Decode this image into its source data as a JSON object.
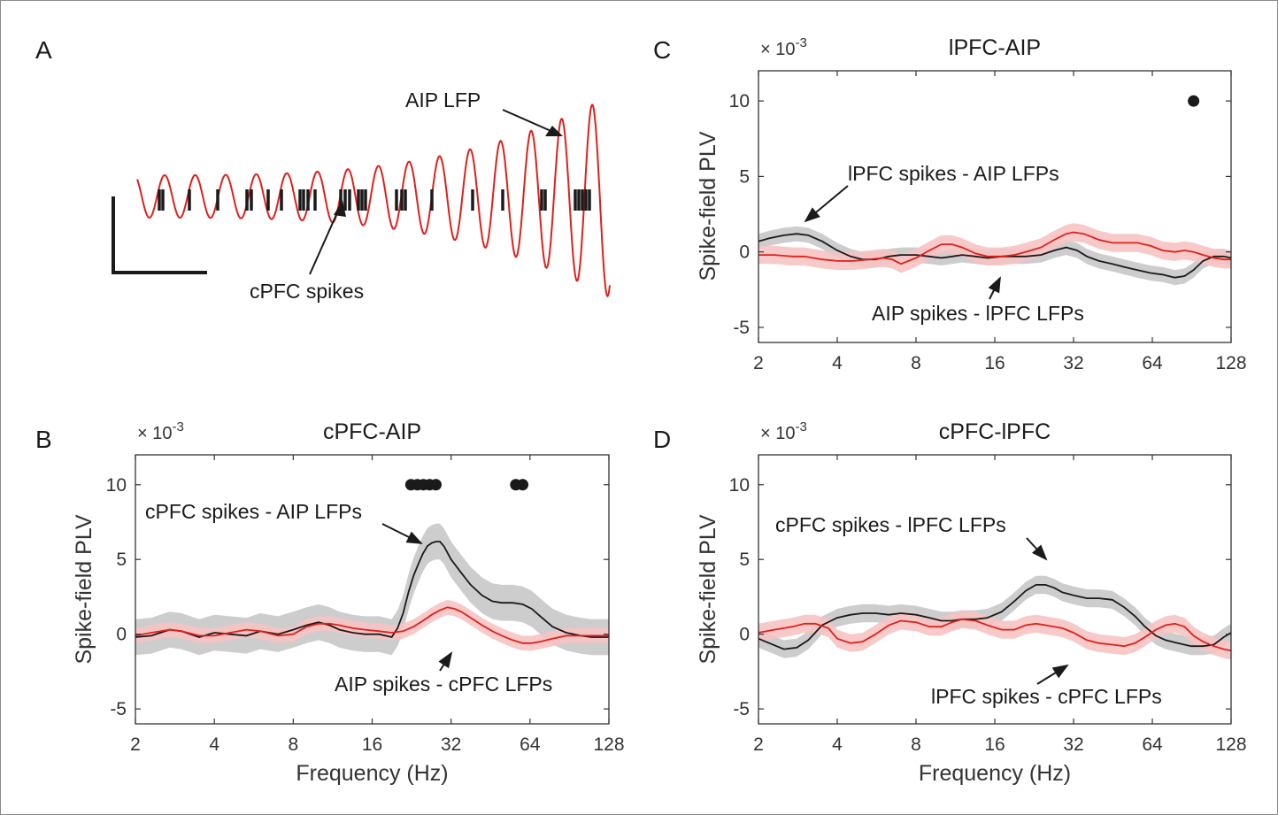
{
  "colors": {
    "spike_field_line": "#1a1a1a",
    "spike_field_band": "#c8c8c8",
    "reverse_line": "#e0201b",
    "reverse_band": "#f7c3c3",
    "axis": "#333333"
  },
  "panel_A": {
    "label": "A",
    "lfp_label": "AIP LFP",
    "spike_label": "cPFC spikes"
  },
  "chart_data": [
    {
      "panel": "B",
      "type": "line",
      "title": "cPFC-AIP",
      "xlabel": "Frequency (Hz)",
      "ylabel": "Spike-field PLV",
      "exponent": "× 10",
      "exponent_power": "-3",
      "xscale": "log2",
      "xlim": [
        2,
        128
      ],
      "ylim": [
        -6,
        12
      ],
      "xticks": [
        2,
        4,
        8,
        16,
        32,
        64,
        128
      ],
      "yticks": [
        -5,
        0,
        5,
        10
      ],
      "series": [
        {
          "name": "cPFC spikes - AIP LFPs",
          "color": "black",
          "x": [
            2,
            2.3,
            2.7,
            3,
            3.5,
            4,
            4.6,
            5.3,
            6,
            7,
            8,
            9,
            10,
            11,
            12,
            13.5,
            15,
            17,
            19,
            20,
            21,
            22,
            23,
            24,
            25,
            26,
            27,
            28,
            29,
            30,
            32,
            35,
            38,
            42,
            46,
            50,
            55,
            60,
            65,
            70,
            78,
            88,
            100,
            110,
            120,
            128
          ],
          "y": [
            -0.2,
            -0.1,
            0.3,
            0.2,
            -0.2,
            0.1,
            0,
            -0.1,
            0.2,
            0,
            0.3,
            0.6,
            0.8,
            0.6,
            0.3,
            0.1,
            0,
            0,
            -0.2,
            0.4,
            1.4,
            2.8,
            3.9,
            4.7,
            5.4,
            5.9,
            6.1,
            6.2,
            6.2,
            5.9,
            5,
            4.1,
            3.3,
            2.6,
            2.2,
            2.1,
            2.1,
            2,
            1.7,
            1.2,
            0.5,
            0.1,
            -0.1,
            -0.2,
            -0.2,
            -0.2
          ],
          "band": 1.2
        },
        {
          "name": "AIP spikes - cPFC LFPs",
          "color": "red",
          "x": [
            2,
            2.3,
            2.7,
            3,
            3.5,
            4,
            4.6,
            5.3,
            6,
            7,
            8,
            9,
            10,
            11,
            12,
            13.5,
            15,
            17,
            19,
            21,
            23,
            25,
            27,
            29,
            31,
            33,
            35,
            38,
            42,
            46,
            50,
            55,
            60,
            65,
            70,
            78,
            88,
            100,
            110,
            120,
            128
          ],
          "y": [
            -0.1,
            0.1,
            0.3,
            0.2,
            -0.1,
            -0.1,
            0.1,
            0.3,
            0.2,
            -0.1,
            0,
            0.5,
            0.7,
            0.7,
            0.6,
            0.4,
            0.3,
            0.2,
            0.1,
            0.2,
            0.5,
            0.9,
            1.3,
            1.6,
            1.8,
            1.7,
            1.5,
            1.1,
            0.6,
            0.2,
            -0.1,
            -0.4,
            -0.6,
            -0.6,
            -0.5,
            -0.3,
            -0.1,
            -0.1,
            -0.1,
            -0.1,
            -0.1
          ],
          "band": 0.5
        }
      ],
      "significant_x": [
        22.5,
        23.8,
        25.1,
        26.5,
        28,
        56.5,
        60
      ],
      "significant_y": 10,
      "annotations": [
        {
          "text": "cPFC spikes - AIP LFPs",
          "target_x": 26,
          "target_y": 5.9
        },
        {
          "text": "AIP spikes - cPFC LFPs",
          "target_x": 30,
          "target_y": 0.6
        }
      ]
    },
    {
      "panel": "C",
      "type": "line",
      "title": "lPFC-AIP",
      "xlabel": "",
      "ylabel": "Spike-field PLV",
      "exponent": "× 10",
      "exponent_power": "-3",
      "xscale": "log2",
      "xlim": [
        2,
        128
      ],
      "ylim": [
        -6,
        12
      ],
      "xticks": [
        2,
        4,
        8,
        16,
        32,
        64,
        128
      ],
      "yticks": [
        -5,
        0,
        5,
        10
      ],
      "series": [
        {
          "name": "lPFC spikes - AIP LFPs",
          "color": "black",
          "x": [
            2,
            2.2,
            2.5,
            2.8,
            3.1,
            3.5,
            4,
            4.5,
            5,
            5.6,
            6.3,
            7,
            8,
            9,
            10,
            11,
            12,
            13.5,
            15,
            17,
            19,
            21,
            24,
            27,
            30,
            33,
            36,
            40,
            45,
            50,
            56,
            63,
            70,
            78,
            85,
            92,
            100,
            110,
            120,
            128
          ],
          "y": [
            0.7,
            0.9,
            1.1,
            1.2,
            1.1,
            0.7,
            0.1,
            -0.3,
            -0.5,
            -0.5,
            -0.3,
            -0.2,
            -0.2,
            -0.3,
            -0.4,
            -0.3,
            -0.2,
            -0.3,
            -0.4,
            -0.3,
            -0.3,
            -0.3,
            -0.2,
            0.1,
            0.3,
            0.1,
            -0.3,
            -0.6,
            -0.8,
            -1,
            -1.2,
            -1.4,
            -1.5,
            -1.7,
            -1.6,
            -1.2,
            -0.6,
            -0.3,
            -0.3,
            -0.4
          ],
          "band": 0.5
        },
        {
          "name": "AIP spikes - lPFC LFPs",
          "color": "red",
          "x": [
            2,
            2.3,
            2.7,
            3,
            3.5,
            4,
            4.6,
            5.3,
            6,
            6.5,
            7,
            8,
            9,
            10,
            11,
            12,
            13.5,
            15,
            17,
            19,
            21,
            24,
            27,
            30,
            32,
            35,
            40,
            45,
            50,
            56,
            63,
            70,
            78,
            85,
            92,
            100,
            110,
            120,
            128
          ],
          "y": [
            -0.2,
            -0.2,
            -0.3,
            -0.3,
            -0.5,
            -0.6,
            -0.6,
            -0.5,
            -0.4,
            -0.5,
            -0.8,
            -0.4,
            0.1,
            0.5,
            0.5,
            0.3,
            -0.1,
            -0.3,
            -0.3,
            -0.2,
            0,
            0.3,
            0.8,
            1.2,
            1.3,
            1.2,
            0.8,
            0.6,
            0.6,
            0.6,
            0.4,
            0.1,
            0,
            0.1,
            0,
            -0.2,
            -0.4,
            -0.5,
            -0.5
          ],
          "band": 0.6
        }
      ],
      "significant_x": [
        92
      ],
      "significant_y": 10,
      "annotations": [
        {
          "text": "lPFC spikes - AIP LFPs",
          "target_x": 2.8,
          "target_y": 1.3
        },
        {
          "text": "AIP spikes - lPFC LFPs",
          "target_x": 18.5,
          "target_y": -0.4
        }
      ]
    },
    {
      "panel": "D",
      "type": "line",
      "title": "cPFC-lPFC",
      "xlabel": "Frequency (Hz)",
      "ylabel": "Spike-field PLV",
      "exponent": "× 10",
      "exponent_power": "-3",
      "xscale": "log2",
      "xlim": [
        2,
        128
      ],
      "ylim": [
        -6,
        12
      ],
      "xticks": [
        2,
        4,
        8,
        16,
        32,
        64,
        128
      ],
      "yticks": [
        -5,
        0,
        5,
        10
      ],
      "series": [
        {
          "name": "cPFC spikes - lPFC LFPs",
          "color": "black",
          "x": [
            2,
            2.2,
            2.5,
            2.8,
            3.1,
            3.5,
            4,
            4.5,
            5,
            5.6,
            6.3,
            7,
            8,
            9,
            10,
            11,
            12,
            13.5,
            15,
            17,
            19,
            21,
            23,
            25,
            27,
            29,
            32,
            36,
            40,
            45,
            50,
            55,
            60,
            66,
            72,
            80,
            90,
            100,
            110,
            120,
            128
          ],
          "y": [
            -0.3,
            -0.6,
            -1,
            -0.9,
            -0.4,
            0.6,
            1.1,
            1.3,
            1.4,
            1.4,
            1.3,
            1.4,
            1.3,
            1.1,
            0.9,
            0.9,
            1,
            1,
            1.1,
            1.5,
            2.2,
            2.9,
            3.3,
            3.3,
            3.1,
            2.8,
            2.6,
            2.4,
            2.4,
            2.3,
            1.8,
            1.2,
            0.5,
            -0.1,
            -0.4,
            -0.6,
            -0.8,
            -0.8,
            -0.7,
            -0.2,
            0.1
          ],
          "band": 0.6
        },
        {
          "name": "lPFC spikes - cPFC LFPs",
          "color": "red",
          "x": [
            2,
            2.3,
            2.7,
            3,
            3.3,
            3.7,
            4,
            4.5,
            5,
            5.6,
            6.3,
            7,
            8,
            9,
            10,
            11,
            12,
            13.5,
            15,
            17,
            19,
            21,
            23,
            25,
            27,
            29,
            32,
            36,
            40,
            45,
            50,
            55,
            60,
            66,
            72,
            78,
            85,
            92,
            100,
            110,
            120,
            128
          ],
          "y": [
            0.1,
            0.3,
            0.5,
            0.7,
            0.7,
            0.4,
            -0.3,
            -0.6,
            -0.5,
            0,
            0.6,
            0.9,
            0.8,
            0.5,
            0.5,
            0.8,
            1,
            0.9,
            0.6,
            0.3,
            0.3,
            0.6,
            0.7,
            0.6,
            0.5,
            0.4,
            0.1,
            -0.4,
            -0.6,
            -0.7,
            -0.8,
            -0.6,
            -0.2,
            0.3,
            0.6,
            0.7,
            0.5,
            -0.1,
            -0.5,
            -0.8,
            -1,
            -1.1
          ],
          "band": 0.6
        }
      ],
      "significant_x": [],
      "significant_y": 10,
      "annotations": [
        {
          "text": "cPFC spikes - lPFC LFPs",
          "target_x": 26,
          "target_y": 2.6
        },
        {
          "text": "lPFC spikes - cPFC LFPs",
          "target_x": 28,
          "target_y": 0.4
        }
      ]
    }
  ]
}
